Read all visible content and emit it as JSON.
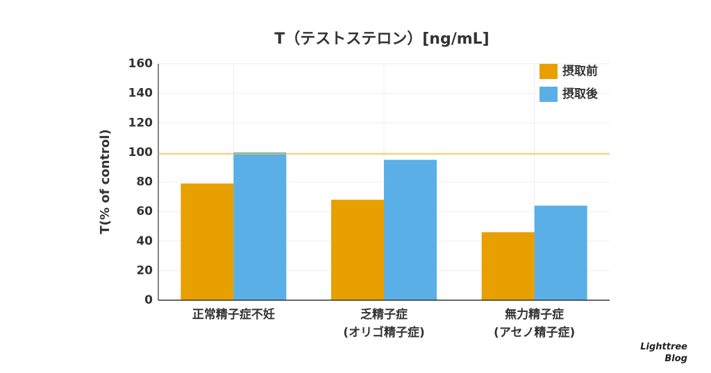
{
  "chart_data": {
    "type": "bar",
    "title": "T（テストステロン）[ng/mL]",
    "y_label": "T(% of control)",
    "categories": [
      "正常精子症不妊",
      "乏精子症\n(オリゴ精子症)",
      "無力精子症\n(アセノ精子症)"
    ],
    "series": [
      {
        "name": "摂取前",
        "color": "#e8a000",
        "values": [
          79,
          68,
          46
        ]
      },
      {
        "name": "摂取後",
        "color": "#5aafe6",
        "values": [
          100,
          95,
          64
        ]
      }
    ],
    "reference_line": {
      "value": 99,
      "color": "#f0c040"
    },
    "ylim": [
      0,
      160
    ],
    "yticks": [
      0,
      20,
      40,
      60,
      80,
      100,
      120,
      140,
      160
    ],
    "grid": true,
    "legend": "top-right",
    "watermark": "Lighttree\nBlog"
  }
}
